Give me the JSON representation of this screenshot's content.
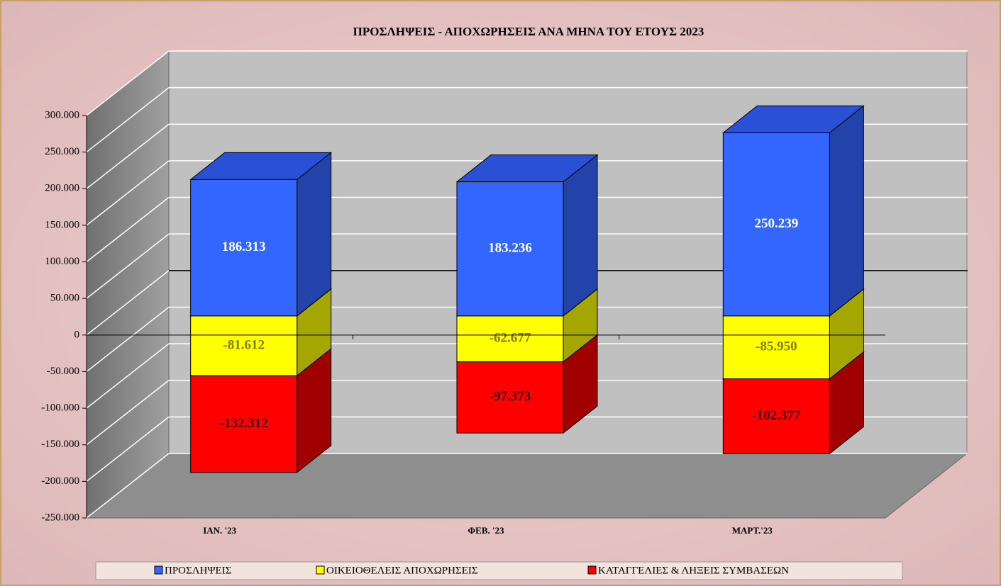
{
  "chart_data": {
    "type": "bar3d_stacked",
    "title": "ΠΡΟΣΛΗΨΕΙΣ - ΑΠΟΧΩΡΗΣΕΙΣ  ΑΝΑ ΜΗΝΑ ΤΟΥ  ΕΤΟΥΣ  2023",
    "categories": [
      "ΙΑΝ.  '23",
      "ΦΕΒ. '23",
      "ΜΑΡΤ.'23"
    ],
    "series": [
      {
        "name": "ΠΡΟΣΛΗΨΕΙΣ",
        "color": "#3366ff",
        "side_color": "#2244aa",
        "top_color": "#2a50d6",
        "label_color": "#ffffff",
        "values": [
          186313,
          183236,
          250239
        ],
        "value_labels": [
          "186.313",
          "183.236",
          "250.239"
        ]
      },
      {
        "name": "ΟΙΚΕΙΟΘΕΛΕΙΣ ΑΠΟΧΩΡΗΣΕΙΣ",
        "color": "#ffff00",
        "side_color": "#a6a600",
        "top_color": "#d8d800",
        "label_color": "#808000",
        "values": [
          -81612,
          -62677,
          -85950
        ],
        "value_labels": [
          "-81.612",
          "-62.677",
          "-85.950"
        ]
      },
      {
        "name": "ΚΑΤΑΓΓΕΛΙΕΣ & ΛΗΞΕΙΣ ΣΥΜΒΑΣΕΩΝ",
        "color": "#ff0000",
        "side_color": "#a00000",
        "top_color": "#cc0000",
        "label_color": "#400000",
        "values": [
          -132312,
          -97373,
          -102377
        ],
        "value_labels": [
          "-132.312",
          "-97.373",
          "-102.377"
        ]
      }
    ],
    "ylim": [
      -250000,
      300000
    ],
    "yticks": [
      {
        "value": -250000,
        "label": "-250.000"
      },
      {
        "value": -200000,
        "label": "-200.000"
      },
      {
        "value": -150000,
        "label": "-150.000"
      },
      {
        "value": -100000,
        "label": "-100.000"
      },
      {
        "value": -50000,
        "label": "-50.000"
      },
      0,
      {
        "value": 50000,
        "label": "50.000"
      },
      {
        "value": 100000,
        "label": "100.000"
      },
      {
        "value": 150000,
        "label": "150.000"
      },
      {
        "value": 200000,
        "label": "200.000"
      },
      {
        "value": 250000,
        "label": "250.000"
      },
      {
        "value": 300000,
        "label": "300.000"
      }
    ],
    "grid": true,
    "legend": "bottom"
  }
}
